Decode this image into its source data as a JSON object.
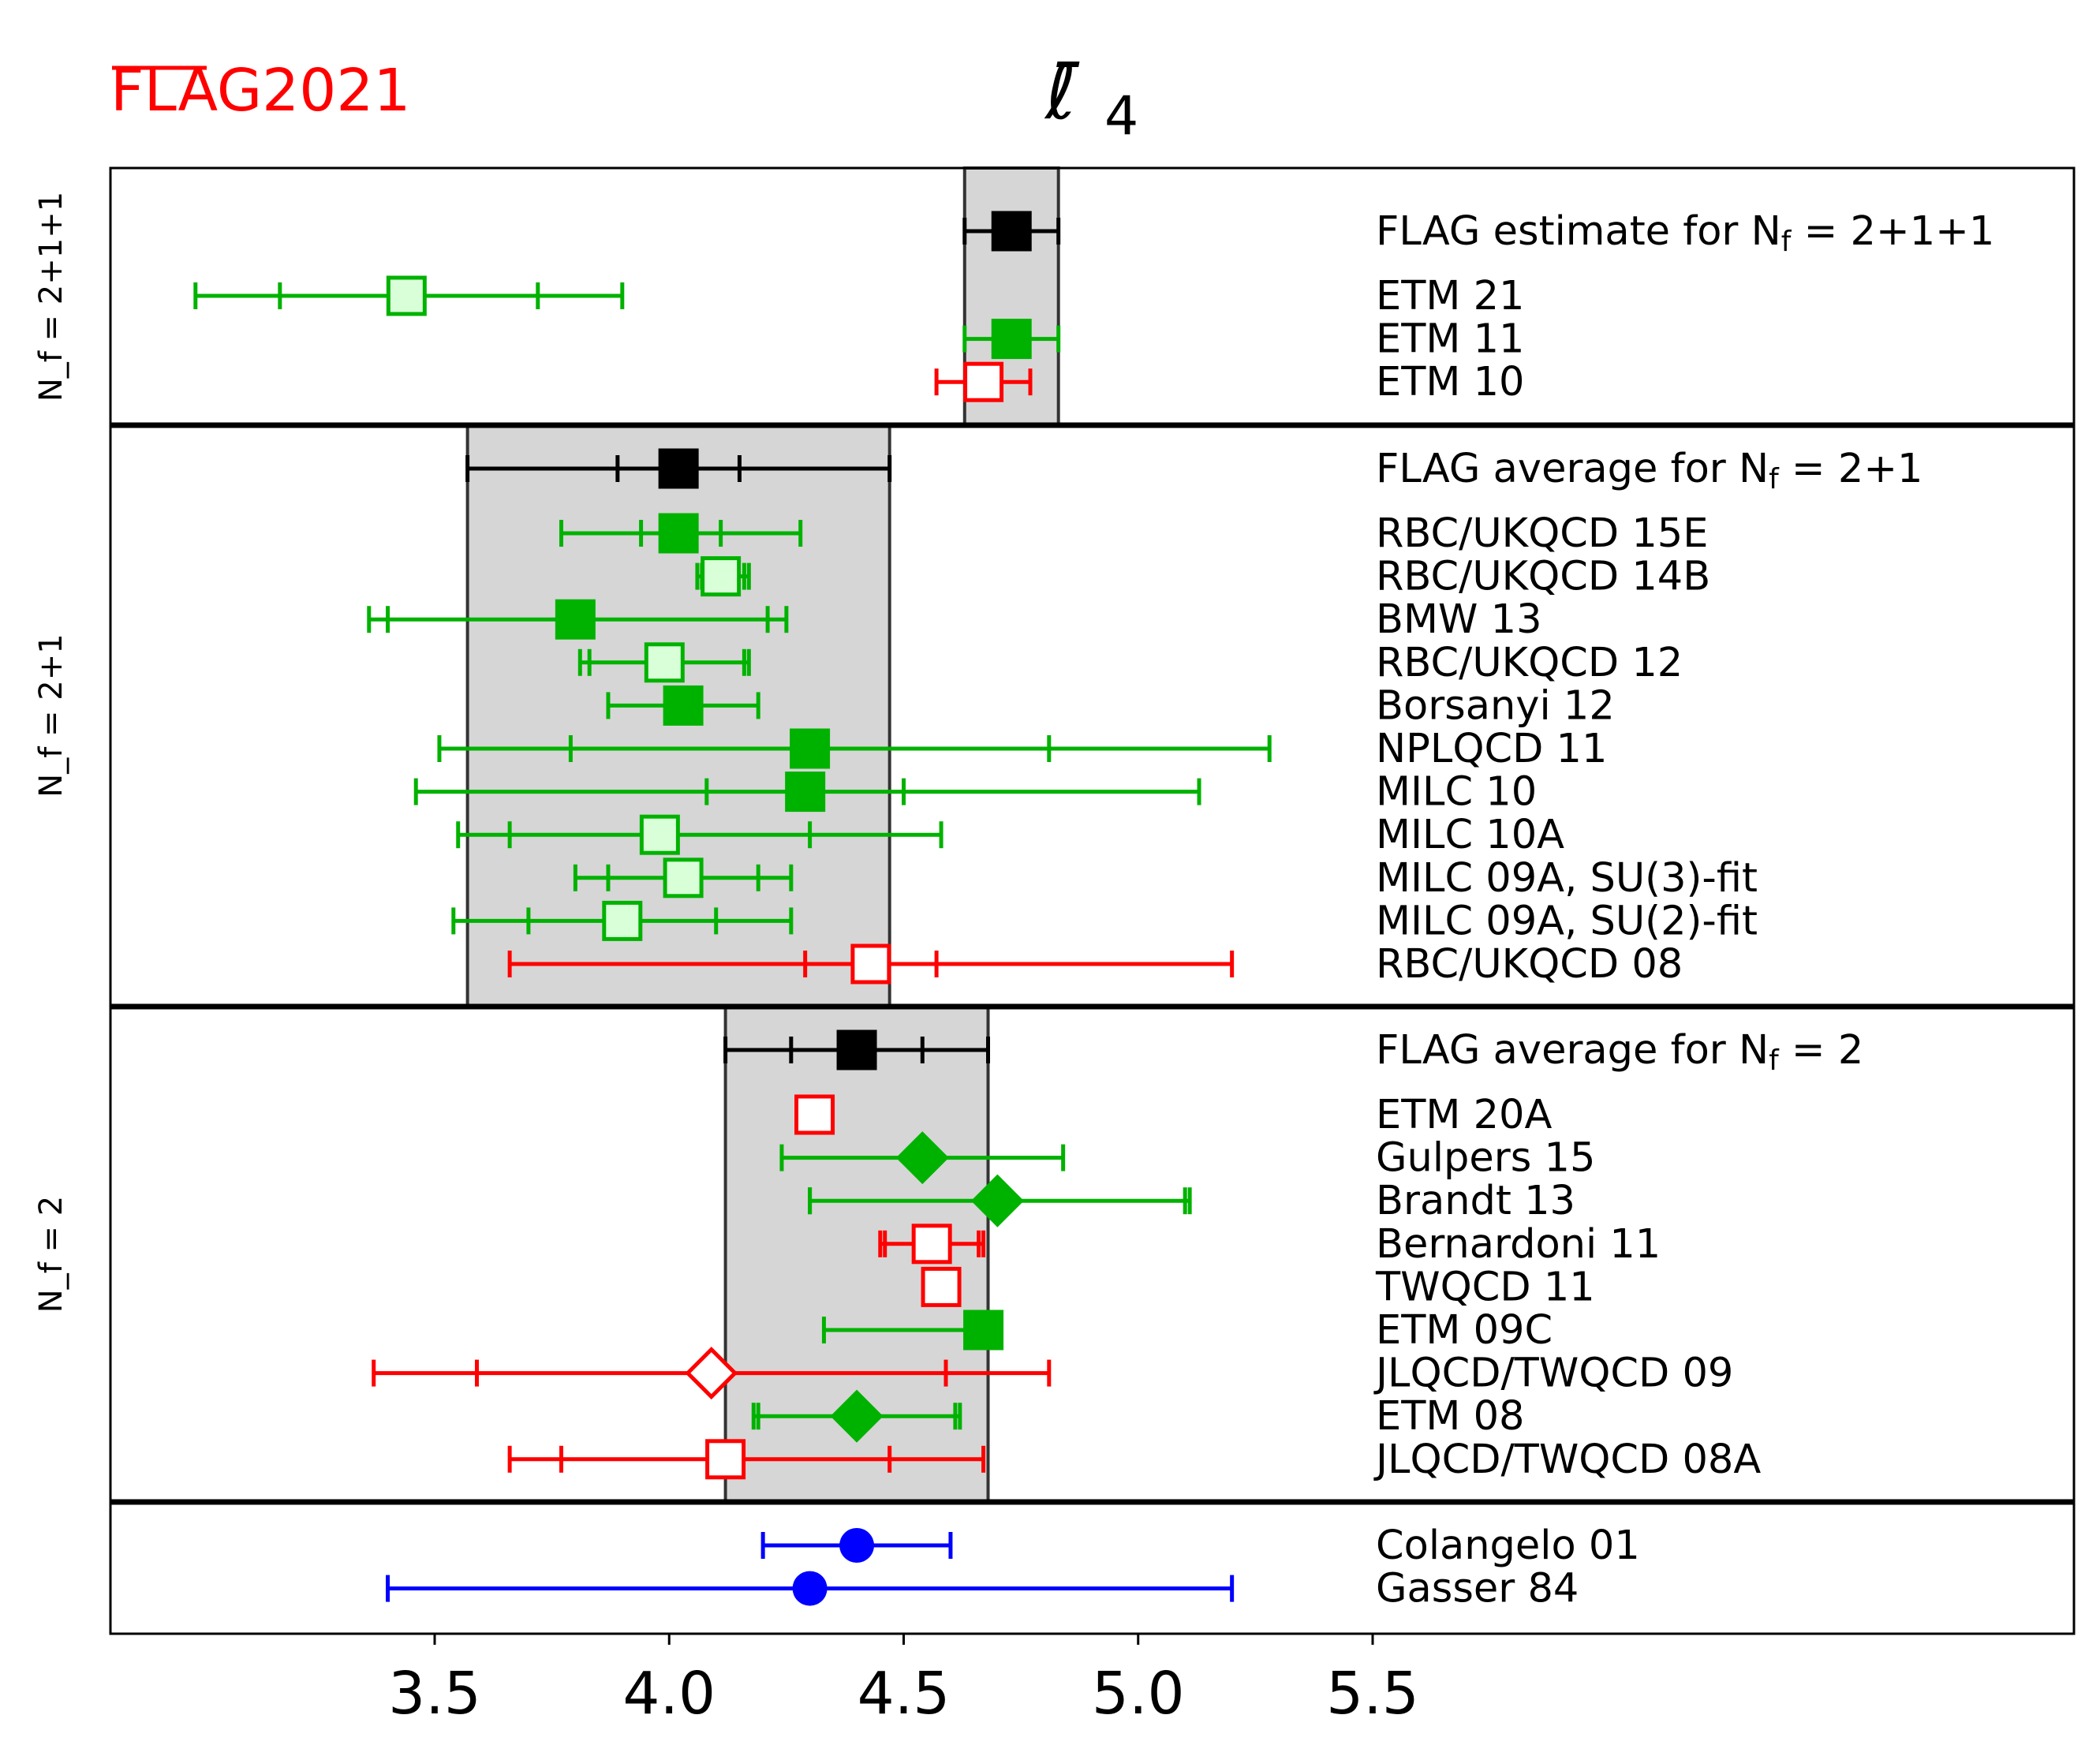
{
  "logo": {
    "text": "FLAG2021",
    "overlined": "FLA",
    "rest": "G2021",
    "color": "#ff0000"
  },
  "colors": {
    "green": "#00b200",
    "light_green": "#d9ffd9",
    "red": "#ff0000",
    "black": "#000000",
    "blue": "#0000ff",
    "band": "#d6d6d6"
  },
  "chart_data": {
    "type": "scatter",
    "title": "ℓ̄4",
    "title_main": "ℓ̄",
    "title_sub": "4",
    "xlim": [
      2.6,
      6.5
    ],
    "xticks": [
      3.5,
      4.0,
      4.5,
      5.0,
      5.5
    ],
    "xtick_labels": [
      "3.5",
      "4.0",
      "4.5",
      "5.0",
      "5.5"
    ],
    "panels": [
      {
        "label": "N_f = 2+1+1",
        "band": [
          4.63,
          4.83
        ],
        "rows": [
          {
            "name": "FLAG estimate for N_f = 2+1+1",
            "value": 4.73,
            "lo": 4.63,
            "hi": 4.83,
            "marker": "square",
            "style": "black"
          },
          {
            "name": "ETM 21",
            "value": 3.44,
            "lo": 2.99,
            "hi": 3.9,
            "ilo": 3.17,
            "ihi": 3.72,
            "marker": "square",
            "style": "light"
          },
          {
            "name": "ETM 11",
            "value": 4.73,
            "lo": 4.63,
            "hi": 4.83,
            "marker": "square",
            "style": "green"
          },
          {
            "name": "ETM 10",
            "value": 4.67,
            "lo": 4.57,
            "hi": 4.77,
            "marker": "square",
            "style": "open-red"
          }
        ]
      },
      {
        "label": "N_f = 2+1",
        "band": [
          3.57,
          4.47
        ],
        "rows": [
          {
            "name": "FLAG average for N_f = 2+1",
            "value": 4.02,
            "lo": 3.57,
            "hi": 4.47,
            "ilo": 3.89,
            "ihi": 4.15,
            "marker": "square",
            "style": "black"
          },
          {
            "name": "RBC/UKQCD 15E",
            "value": 4.02,
            "lo": 3.77,
            "hi": 4.28,
            "ilo": 3.94,
            "ihi": 4.11,
            "marker": "square",
            "style": "green"
          },
          {
            "name": "RBC/UKQCD 14B",
            "value": 4.11,
            "lo": 4.06,
            "hi": 4.17,
            "ilo": 4.07,
            "ihi": 4.16,
            "marker": "square",
            "style": "light"
          },
          {
            "name": "BMW 13",
            "value": 3.8,
            "lo": 3.36,
            "hi": 4.25,
            "ilo": 3.4,
            "ihi": 4.21,
            "marker": "square",
            "style": "green"
          },
          {
            "name": "RBC/UKQCD 12",
            "value": 3.99,
            "lo": 3.81,
            "hi": 4.17,
            "ilo": 3.83,
            "ihi": 4.16,
            "marker": "square",
            "style": "light"
          },
          {
            "name": "Borsanyi 12",
            "value": 4.03,
            "lo": 3.87,
            "hi": 4.19,
            "marker": "square",
            "style": "green"
          },
          {
            "name": "NPLQCD 11",
            "value": 4.3,
            "lo": 3.51,
            "hi": 5.28,
            "ilo": 3.79,
            "ihi": 4.81,
            "marker": "square",
            "style": "green"
          },
          {
            "name": "MILC 10",
            "value": 4.29,
            "lo": 3.46,
            "hi": 5.13,
            "ilo": 4.08,
            "ihi": 4.5,
            "marker": "square",
            "style": "green"
          },
          {
            "name": "MILC 10A",
            "value": 3.98,
            "lo": 3.55,
            "hi": 4.58,
            "ilo": 3.66,
            "ihi": 4.3,
            "marker": "square",
            "style": "light"
          },
          {
            "name": "MILC 09A, SU(3)-fit",
            "value": 4.03,
            "lo": 3.8,
            "hi": 4.26,
            "ilo": 3.87,
            "ihi": 4.19,
            "marker": "square",
            "style": "light"
          },
          {
            "name": "MILC 09A, SU(2)-fit",
            "value": 3.9,
            "lo": 3.54,
            "hi": 4.26,
            "ilo": 3.7,
            "ihi": 4.1,
            "marker": "square",
            "style": "light"
          },
          {
            "name": "RBC/UKQCD 08",
            "value": 4.43,
            "lo": 3.66,
            "hi": 5.2,
            "ilo": 4.29,
            "ihi": 4.57,
            "marker": "square",
            "style": "open-red"
          }
        ]
      },
      {
        "label": "N_f = 2",
        "band": [
          4.12,
          4.68
        ],
        "rows": [
          {
            "name": "FLAG average for N_f = 2",
            "value": 4.4,
            "lo": 4.12,
            "hi": 4.68,
            "ilo": 4.26,
            "ihi": 4.54,
            "marker": "square",
            "style": "black"
          },
          {
            "name": "ETM 20A",
            "value": 4.31,
            "lo": 4.28,
            "hi": 4.34,
            "marker": "square",
            "style": "open-red"
          },
          {
            "name": "Gulpers 15",
            "value": 4.54,
            "lo": 4.24,
            "hi": 4.84,
            "marker": "diamond",
            "style": "green"
          },
          {
            "name": "Brandt 13",
            "value": 4.7,
            "lo": 4.3,
            "hi": 5.11,
            "ilo": 4.3,
            "ihi": 5.1,
            "marker": "diamond",
            "style": "green"
          },
          {
            "name": "Bernardoni 11",
            "value": 4.56,
            "lo": 4.45,
            "hi": 4.67,
            "ilo": 4.46,
            "ihi": 4.66,
            "marker": "square",
            "style": "open-red"
          },
          {
            "name": "TWQCD 11",
            "value": 4.58,
            "lo": 4.58,
            "hi": 4.58,
            "marker": "square",
            "style": "open-red"
          },
          {
            "name": "ETM 09C",
            "value": 4.67,
            "lo": 4.33,
            "hi": 4.7,
            "marker": "square",
            "style": "green"
          },
          {
            "name": "JLQCD/TWQCD 09",
            "value": 4.09,
            "lo": 3.37,
            "hi": 4.81,
            "ilo": 3.59,
            "ihi": 4.59,
            "marker": "diamond",
            "style": "open-red"
          },
          {
            "name": "ETM 08",
            "value": 4.4,
            "lo": 4.18,
            "hi": 4.62,
            "ilo": 4.19,
            "ihi": 4.61,
            "marker": "diamond",
            "style": "green"
          },
          {
            "name": "JLQCD/TWQCD 08A",
            "value": 4.12,
            "lo": 3.66,
            "hi": 4.67,
            "ilo": 3.77,
            "ihi": 4.47,
            "marker": "square",
            "style": "open-red"
          }
        ]
      },
      {
        "label": "",
        "band": null,
        "rows": [
          {
            "name": "Colangelo 01",
            "value": 4.4,
            "lo": 4.2,
            "hi": 4.6,
            "marker": "circle",
            "style": "blue"
          },
          {
            "name": "Gasser 84",
            "value": 4.3,
            "lo": 3.4,
            "hi": 5.2,
            "marker": "circle",
            "style": "blue"
          }
        ]
      }
    ]
  }
}
